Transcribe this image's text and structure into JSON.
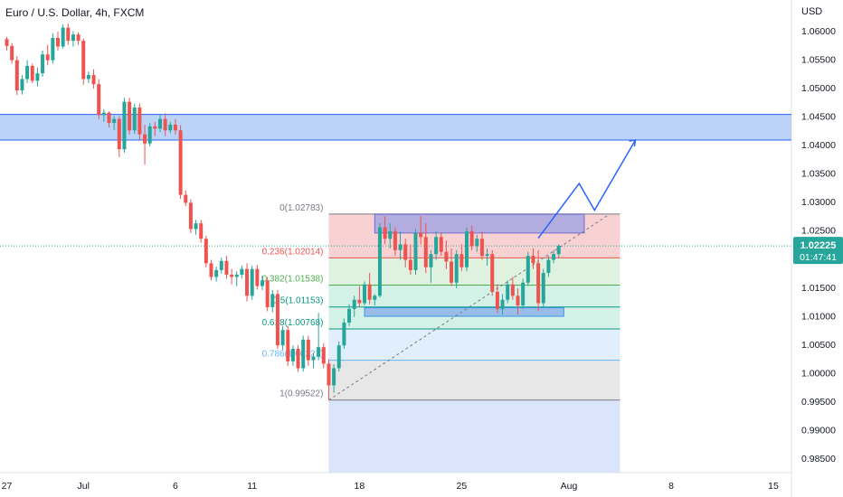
{
  "header": {
    "symbol_title": "Euro / U.S. Dollar, 4h, FXCM",
    "currency": "USD"
  },
  "colors": {
    "up": "#26a69a",
    "down": "#ef5350",
    "zone_fill": "#a9c8f5",
    "zone_border": "#2962ff",
    "price_tag": "#26a69a",
    "projection": "#2962ff",
    "box_top_fill": "#a8a6e0",
    "box_bottom_fill": "#8fb4e8"
  },
  "chart_data": {
    "type": "candlestick",
    "instrument": "Euro / U.S. Dollar",
    "timeframe": "4h",
    "source": "FXCM",
    "ylim": [
      0.9825,
      1.0625
    ],
    "y_ticks": [
      "1.06000",
      "1.05500",
      "1.05000",
      "1.04500",
      "1.04000",
      "1.03500",
      "1.03000",
      "1.02500",
      "1.01500",
      "1.01000",
      "1.00500",
      "1.00000",
      "0.99500",
      "0.99000",
      "0.98500"
    ],
    "y_tick_values": [
      1.06,
      1.055,
      1.05,
      1.045,
      1.04,
      1.035,
      1.03,
      1.025,
      1.015,
      1.01,
      1.005,
      1.0,
      0.995,
      0.99,
      0.985
    ],
    "x_ticks": [
      {
        "label": "27",
        "bar": 0
      },
      {
        "label": "Jul",
        "bar": 15
      },
      {
        "label": "6",
        "bar": 33
      },
      {
        "label": "11",
        "bar": 48
      },
      {
        "label": "18",
        "bar": 69
      },
      {
        "label": "25",
        "bar": 89
      },
      {
        "label": "Aug",
        "bar": 110
      },
      {
        "label": "8",
        "bar": 130
      },
      {
        "label": "15",
        "bar": 150
      }
    ],
    "current_price": {
      "value": "1.02225",
      "countdown": "01:47:41"
    },
    "resistance_zone": [
      1.0408,
      1.0453
    ],
    "fib_start_bar": 63,
    "fib_end_bar": 120,
    "fib_levels": [
      {
        "label": "0(1.02783)",
        "value": 1.02783,
        "color": "#787b86"
      },
      {
        "label": "0.236(1.02014)",
        "value": 1.02014,
        "color": "#ef5350"
      },
      {
        "label": "0.382(1.01538)",
        "value": 1.01538,
        "color": "#4caf50"
      },
      {
        "label": "0.5(1.01153)",
        "value": 1.01153,
        "color": "#089981"
      },
      {
        "label": "0.618(1.00768)",
        "value": 1.00768,
        "color": "#089981"
      },
      {
        "label": "0.786(1.00221)",
        "value": 1.00221,
        "color": "#64b5f6"
      },
      {
        "label": "1(0.99522)",
        "value": 0.99522,
        "color": "#787b86"
      }
    ],
    "fib_fills": [
      "#f7c9cb",
      "#d9efd9",
      "#cdeee4",
      "#cdeee4",
      "#dcecfb",
      "#e3e3e3",
      "#d3e1fb"
    ],
    "fib_lowest_fill_to": 0.9825,
    "range_box_top": {
      "bars": [
        72,
        113
      ],
      "low": 1.0245,
      "high": 1.0278
    },
    "range_box_bottom": {
      "bars": [
        70,
        109
      ],
      "low": 1.0099,
      "high": 1.0114
    },
    "trend_line": {
      "from": {
        "bar": 63,
        "price": 0.99522
      },
      "to": {
        "bar": 118,
        "price": 1.02783
      }
    },
    "projection_path": [
      {
        "bar": 104,
        "price": 1.0236
      },
      {
        "bar": 112,
        "price": 1.0332
      },
      {
        "bar": 115,
        "price": 1.0285
      },
      {
        "bar": 123,
        "price": 1.0408
      }
    ],
    "candles": [
      [
        1.0585,
        1.0589,
        1.0565,
        1.0573
      ],
      [
        1.0573,
        1.0578,
        1.0542,
        1.0548
      ],
      [
        1.0548,
        1.0555,
        1.0487,
        1.0495
      ],
      [
        1.0495,
        1.0522,
        1.0488,
        1.0515
      ],
      [
        1.0515,
        1.0548,
        1.0508,
        1.0538
      ],
      [
        1.0538,
        1.0542,
        1.0508,
        1.0512
      ],
      [
        1.0512,
        1.0535,
        1.0502,
        1.0525
      ],
      [
        1.0525,
        1.0565,
        1.0519,
        1.0558
      ],
      [
        1.0558,
        1.0575,
        1.0539,
        1.0548
      ],
      [
        1.0548,
        1.0595,
        1.0542,
        1.0587
      ],
      [
        1.0587,
        1.0598,
        1.0565,
        1.0572
      ],
      [
        1.0572,
        1.0611,
        1.0569,
        1.0605
      ],
      [
        1.0605,
        1.0612,
        1.0575,
        1.0582
      ],
      [
        1.0582,
        1.0599,
        1.0572,
        1.0593
      ],
      [
        1.0593,
        1.0597,
        1.0575,
        1.0582
      ],
      [
        1.0582,
        1.0586,
        1.0505,
        1.0515
      ],
      [
        1.0515,
        1.0528,
        1.0508,
        1.0522
      ],
      [
        1.0522,
        1.0532,
        1.0498,
        1.0506
      ],
      [
        1.0506,
        1.0515,
        1.0445,
        1.0452
      ],
      [
        1.0452,
        1.0462,
        1.044,
        1.0456
      ],
      [
        1.0456,
        1.0458,
        1.043,
        1.0438
      ],
      [
        1.0438,
        1.045,
        1.0425,
        1.0445
      ],
      [
        1.0445,
        1.045,
        1.0378,
        1.0392
      ],
      [
        1.0392,
        1.0482,
        1.0386,
        1.0475
      ],
      [
        1.0475,
        1.0482,
        1.0418,
        1.0425
      ],
      [
        1.0425,
        1.0472,
        1.0419,
        1.0465
      ],
      [
        1.0465,
        1.0472,
        1.0408,
        1.0418
      ],
      [
        1.0418,
        1.0435,
        1.0365,
        1.0402
      ],
      [
        1.0402,
        1.0438,
        1.0397,
        1.0432
      ],
      [
        1.0432,
        1.044,
        1.0415,
        1.0428
      ],
      [
        1.0428,
        1.0452,
        1.0422,
        1.0445
      ],
      [
        1.0445,
        1.0455,
        1.0415,
        1.0425
      ],
      [
        1.0425,
        1.044,
        1.042,
        1.0435
      ],
      [
        1.0435,
        1.0445,
        1.0418,
        1.0425
      ],
      [
        1.0425,
        1.0434,
        1.0305,
        1.0312
      ],
      [
        1.0312,
        1.032,
        1.0292,
        1.0298
      ],
      [
        1.0298,
        1.0304,
        1.0245,
        1.0252
      ],
      [
        1.0252,
        1.0268,
        1.0242,
        1.0262
      ],
      [
        1.0262,
        1.0268,
        1.0228,
        1.0235
      ],
      [
        1.0235,
        1.024,
        1.0185,
        1.0192
      ],
      [
        1.0192,
        1.0198,
        1.0162,
        1.0168
      ],
      [
        1.0168,
        1.0186,
        1.016,
        1.018
      ],
      [
        1.018,
        1.0202,
        1.0174,
        1.0196
      ],
      [
        1.0196,
        1.0205,
        1.0165,
        1.0172
      ],
      [
        1.0172,
        1.0182,
        1.0155,
        1.0168
      ],
      [
        1.0168,
        1.0178,
        1.0152,
        1.0172
      ],
      [
        1.0172,
        1.0188,
        1.0165,
        1.0182
      ],
      [
        1.0182,
        1.0192,
        1.0125,
        1.0135
      ],
      [
        1.0135,
        1.0188,
        1.0128,
        1.0182
      ],
      [
        1.0182,
        1.0189,
        1.0146,
        1.0152
      ],
      [
        1.0152,
        1.017,
        1.0145,
        1.0162
      ],
      [
        1.0162,
        1.0168,
        1.0108,
        1.0115
      ],
      [
        1.0115,
        1.0145,
        1.0106,
        1.0138
      ],
      [
        1.0138,
        1.0145,
        1.0042,
        1.0048
      ],
      [
        1.0048,
        1.0082,
        1.004,
        1.0075
      ],
      [
        1.0075,
        1.0082,
        1.0012,
        1.002
      ],
      [
        1.002,
        1.0048,
        1.0012,
        1.0042
      ],
      [
        1.0042,
        1.0048,
        1.0002,
        1.0008
      ],
      [
        1.0008,
        1.0065,
        1.0002,
        1.0058
      ],
      [
        1.0058,
        1.0065,
        1.0012,
        1.0022
      ],
      [
        1.0022,
        1.0035,
        1.0008,
        1.0028
      ],
      [
        1.0028,
        1.0105,
        1.0022,
        1.0045
      ],
      [
        1.0045,
        1.0052,
        1.0008,
        1.0016
      ],
      [
        1.0016,
        1.0024,
        0.9952,
        0.9978
      ],
      [
        0.9978,
        1.0015,
        0.9965,
        1.0008
      ],
      [
        1.0008,
        1.0055,
        1.0002,
        1.0048
      ],
      [
        1.0048,
        1.0095,
        1.0042,
        1.0088
      ],
      [
        1.0088,
        1.012,
        1.0082,
        1.0112
      ],
      [
        1.0112,
        1.0135,
        1.0098,
        1.0128
      ],
      [
        1.0128,
        1.0152,
        1.0115,
        1.0122
      ],
      [
        1.0122,
        1.016,
        1.0118,
        1.0155
      ],
      [
        1.0155,
        1.0175,
        1.012,
        1.0128
      ],
      [
        1.0128,
        1.0138,
        1.0118,
        1.0135
      ],
      [
        1.0135,
        1.0262,
        1.0132,
        1.0255
      ],
      [
        1.0255,
        1.0275,
        1.0225,
        1.0235
      ],
      [
        1.0235,
        1.0262,
        1.0218,
        1.0248
      ],
      [
        1.0248,
        1.0255,
        1.0205,
        1.0215
      ],
      [
        1.0215,
        1.0248,
        1.0198,
        1.0225
      ],
      [
        1.0225,
        1.0235,
        1.0185,
        1.0198
      ],
      [
        1.0198,
        1.0225,
        1.0172,
        1.018
      ],
      [
        1.018,
        1.0252,
        1.0172,
        1.0245
      ],
      [
        1.0245,
        1.0275,
        1.0225,
        1.0238
      ],
      [
        1.0238,
        1.0262,
        1.0175,
        1.0185
      ],
      [
        1.0185,
        1.0215,
        1.0158,
        1.0208
      ],
      [
        1.0208,
        1.0248,
        1.0198,
        1.0238
      ],
      [
        1.0238,
        1.0245,
        1.0205,
        1.0212
      ],
      [
        1.0212,
        1.0232,
        1.0182,
        1.0195
      ],
      [
        1.0195,
        1.0218,
        1.0152,
        1.0158
      ],
      [
        1.0158,
        1.0215,
        1.0148,
        1.0208
      ],
      [
        1.0208,
        1.0225,
        1.0178,
        1.0185
      ],
      [
        1.0185,
        1.0255,
        1.0178,
        1.0248
      ],
      [
        1.0248,
        1.0258,
        1.0215,
        1.0222
      ],
      [
        1.0222,
        1.0242,
        1.0212,
        1.0235
      ],
      [
        1.0235,
        1.0248,
        1.0198,
        1.0205
      ],
      [
        1.0205,
        1.0218,
        1.0188,
        1.0208
      ],
      [
        1.0208,
        1.0215,
        1.0135,
        1.0142
      ],
      [
        1.0142,
        1.0155,
        1.0105,
        1.0112
      ],
      [
        1.0112,
        1.0138,
        1.0102,
        1.0128
      ],
      [
        1.0128,
        1.0162,
        1.0122,
        1.0155
      ],
      [
        1.0155,
        1.0168,
        1.0128,
        1.0135
      ],
      [
        1.0135,
        1.0148,
        1.0102,
        1.0118
      ],
      [
        1.0118,
        1.0165,
        1.0112,
        1.0158
      ],
      [
        1.0158,
        1.0212,
        1.0152,
        1.0205
      ],
      [
        1.0205,
        1.0218,
        1.0182,
        1.0192
      ],
      [
        1.0192,
        1.0215,
        1.0108,
        1.0122
      ],
      [
        1.0122,
        1.0182,
        1.0115,
        1.0175
      ],
      [
        1.0175,
        1.0205,
        1.0168,
        1.0198
      ],
      [
        1.0198,
        1.0215,
        1.0192,
        1.0208
      ],
      [
        1.0208,
        1.0225,
        1.0201,
        1.02225
      ]
    ]
  }
}
